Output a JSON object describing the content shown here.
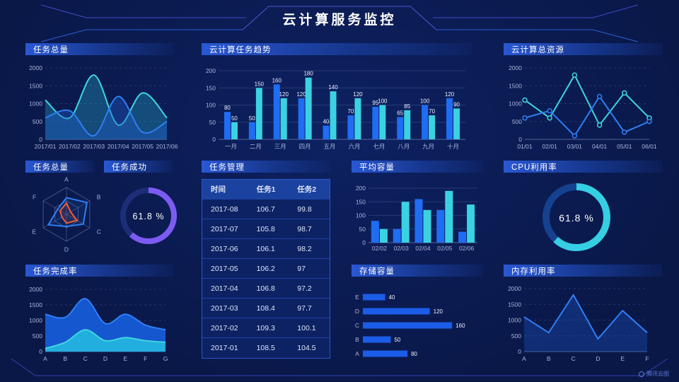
{
  "page_title": "云计算服务监控",
  "watermark": "腾讯云图",
  "colors": {
    "background": "#0b1c52",
    "panel_header": "#2a58d4",
    "bar_blue": "#1f6df2",
    "bar_cyan": "#3ad2e2",
    "line_blue": "#2e7ff2",
    "line_cyan": "#3fd6e0",
    "donut_purple": "#7c5bf2",
    "donut_cyan": "#35cfe3",
    "radar_red": "#f25c38"
  },
  "panels": {
    "task_total_line": {
      "title": "任务总量"
    },
    "trend": {
      "title": "云计算任务趋势"
    },
    "resources": {
      "title": "云计算总资源"
    },
    "task_total_radar": {
      "title": "任务总量"
    },
    "task_success": {
      "title": "任务成功",
      "value": "61.8 %"
    },
    "task_table": {
      "title": "任务管理"
    },
    "avg_capacity": {
      "title": "平均容量"
    },
    "cpu": {
      "title": "CPU利用率",
      "value": "61.8 %"
    },
    "completion": {
      "title": "任务完成率"
    },
    "storage": {
      "title": "存储容量"
    },
    "memory": {
      "title": "内存利用率"
    }
  },
  "chart_data": [
    {
      "id": "task-total-line",
      "type": "area",
      "title": "任务总量",
      "x": [
        "2017/01",
        "2017/02",
        "2017/03",
        "2017/04",
        "2017/05",
        "2017/06"
      ],
      "ylim": [
        0,
        2000
      ],
      "yticks": [
        0,
        500,
        1000,
        1500,
        2000
      ],
      "smooth": true,
      "grid": "dashed",
      "series": [
        {
          "name": "series-cyan",
          "color": "#3fd6e0",
          "fill": "rgba(42,190,215,0.30)",
          "values": [
            1100,
            600,
            1800,
            400,
            1300,
            600
          ]
        },
        {
          "name": "series-blue",
          "color": "#2e7ff2",
          "fill": "rgba(30,90,200,0.40)",
          "values": [
            600,
            800,
            100,
            1200,
            200,
            500
          ]
        }
      ]
    },
    {
      "id": "trend-bars",
      "type": "bar",
      "title": "云计算任务趋势",
      "categories": [
        "一月",
        "二月",
        "三月",
        "四月",
        "五月",
        "六月",
        "七月",
        "八月",
        "九月",
        "十月"
      ],
      "ylim": [
        0,
        200
      ],
      "yticks": [
        0,
        50,
        100,
        150,
        200
      ],
      "show_labels": true,
      "series": [
        {
          "name": "series-blue",
          "color": "#1f6df2",
          "values": [
            80,
            50,
            160,
            120,
            40,
            70,
            95,
            65,
            100,
            120
          ]
        },
        {
          "name": "series-cyan",
          "color": "#3ad2e2",
          "values": [
            50,
            150,
            120,
            180,
            140,
            120,
            100,
            85,
            70,
            90
          ]
        }
      ]
    },
    {
      "id": "resources-line",
      "type": "line",
      "title": "云计算总资源",
      "x": [
        "01/01",
        "02/01",
        "03/01",
        "04/01",
        "05/01",
        "06/01"
      ],
      "ylim": [
        0,
        2000
      ],
      "yticks": [
        0,
        500,
        1000,
        1500,
        2000
      ],
      "smooth": false,
      "markers": true,
      "grid": "dashed",
      "series": [
        {
          "name": "series-cyan",
          "color": "#3fd6e0",
          "values": [
            1100,
            600,
            1800,
            400,
            1300,
            600
          ]
        },
        {
          "name": "series-blue",
          "color": "#2e7ff2",
          "values": [
            600,
            800,
            100,
            1200,
            200,
            500
          ]
        }
      ]
    },
    {
      "id": "task-radar",
      "type": "radar",
      "title": "任务总量",
      "axes": [
        "A",
        "B",
        "C",
        "D",
        "E",
        "F"
      ],
      "max": 100,
      "series": [
        {
          "name": "series-blue",
          "color": "#2f7ff5",
          "fill": "rgba(47,127,245,0.10)",
          "values": [
            62,
            88,
            72,
            45,
            78,
            38
          ]
        },
        {
          "name": "series-red",
          "color": "#f25c38",
          "fill": "rgba(242,92,56,0.12)",
          "values": [
            42,
            18,
            45,
            33,
            20,
            27
          ]
        }
      ]
    },
    {
      "id": "success-donut",
      "type": "donut",
      "title": "任务成功",
      "percent": 61.8,
      "label": "61.8 %",
      "color": "#7c5bf2",
      "track": "#1c2e78"
    },
    {
      "id": "task-table",
      "type": "table",
      "title": "任务管理",
      "headers": [
        "时间",
        "任务1",
        "任务2"
      ],
      "rows": [
        [
          "2017-08",
          "106.7",
          "99.8"
        ],
        [
          "2017-07",
          "105.8",
          "98.7"
        ],
        [
          "2017-06",
          "106.1",
          "98.2"
        ],
        [
          "2017-05",
          "106.2",
          "97"
        ],
        [
          "2017-04",
          "106.8",
          "97.2"
        ],
        [
          "2017-03",
          "108.4",
          "97.7"
        ],
        [
          "2017-02",
          "109.3",
          "100.1"
        ],
        [
          "2017-01",
          "108.5",
          "104.5"
        ]
      ]
    },
    {
      "id": "avg-bars",
      "type": "bar",
      "title": "平均容量",
      "categories": [
        "02/02",
        "02/03",
        "02/04",
        "02/05",
        "02/06"
      ],
      "ylim": [
        0,
        200
      ],
      "yticks": [
        0,
        50,
        100,
        150,
        200
      ],
      "show_labels": false,
      "series": [
        {
          "name": "series-blue",
          "color": "#1f6df2",
          "values": [
            80,
            50,
            160,
            120,
            40
          ]
        },
        {
          "name": "series-cyan",
          "color": "#3ad2e2",
          "values": [
            50,
            150,
            120,
            190,
            140
          ]
        }
      ]
    },
    {
      "id": "cpu-donut",
      "type": "donut",
      "title": "CPU利用率",
      "percent": 61.8,
      "label": "61.8 %",
      "color": "#35cfe3",
      "track": "#15418f"
    },
    {
      "id": "completion-area",
      "type": "area",
      "title": "任务完成率",
      "x": [
        "A",
        "B",
        "C",
        "D",
        "E",
        "F",
        "G"
      ],
      "ylim": [
        0,
        2000
      ],
      "yticks": [
        0,
        500,
        1000,
        1500,
        2000
      ],
      "smooth": true,
      "grid": "dashed",
      "series": [
        {
          "name": "series-blue",
          "color": "#2f7ff5",
          "fill": "#1557cf",
          "values": [
            1200,
            1100,
            1700,
            900,
            1200,
            850,
            700
          ]
        },
        {
          "name": "series-cyan",
          "color": "#3fd6e0",
          "fill": "#22aede",
          "values": [
            100,
            300,
            700,
            350,
            450,
            350,
            300
          ]
        }
      ]
    },
    {
      "id": "storage-hbars",
      "type": "hbar",
      "title": "存储容量",
      "categories": [
        "E",
        "D",
        "C",
        "B",
        "A"
      ],
      "values": [
        40,
        120,
        160,
        50,
        80
      ],
      "xlim": [
        0,
        180
      ],
      "color": "#1b5ce8"
    },
    {
      "id": "memory-line",
      "type": "area",
      "title": "内存利用率",
      "x": [
        "A",
        "B",
        "C",
        "D",
        "E",
        "F"
      ],
      "ylim": [
        0,
        2000
      ],
      "yticks": [
        0,
        500,
        1000,
        1500,
        2000
      ],
      "smooth": false,
      "grid": "dashed",
      "series": [
        {
          "name": "series-blue",
          "color": "#2f7ff5",
          "fill": "rgba(28,85,200,0.35)",
          "values": [
            1100,
            600,
            1800,
            400,
            1300,
            600
          ]
        }
      ]
    }
  ]
}
